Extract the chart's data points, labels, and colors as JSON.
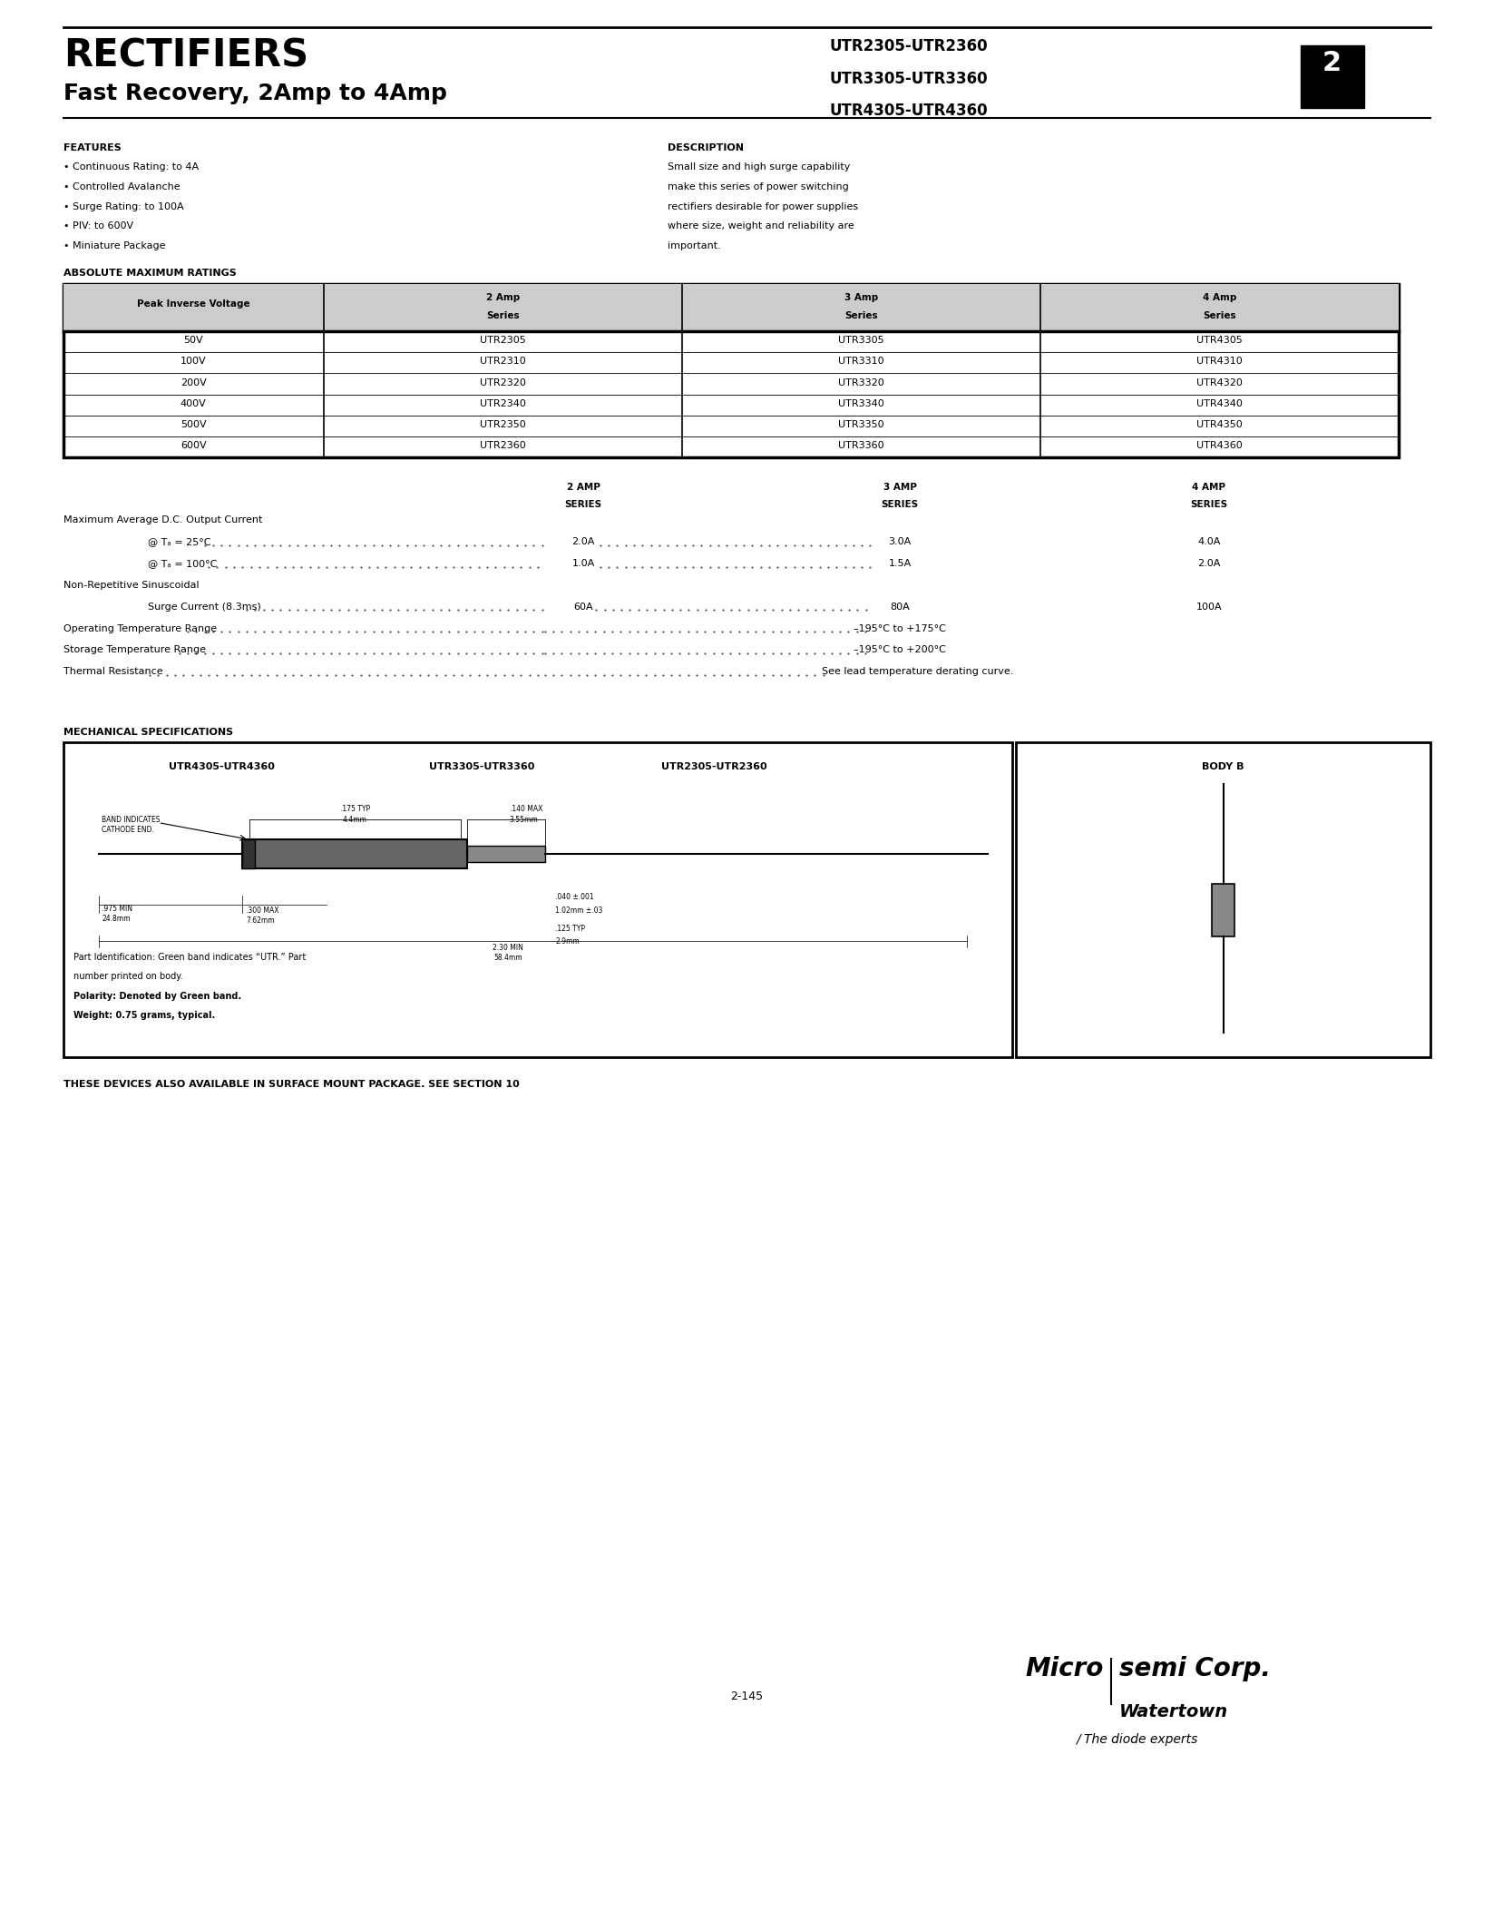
{
  "title": "RECTIFIERS",
  "subtitle": "Fast Recovery, 2Amp to 4Amp",
  "part_numbers": [
    "UTR2305-UTR2360",
    "UTR3305-UTR3360",
    "UTR4305-UTR4360"
  ],
  "section_number": "2",
  "features_title": "FEATURES",
  "features": [
    "Continuous Rating: to 4A",
    "Controlled Avalanche",
    "Surge Rating: to 100A",
    "PIV: to 600V",
    "Miniature Package"
  ],
  "description_title": "DESCRIPTION",
  "description_lines": [
    "Small size and high surge capability",
    "make this series of power switching",
    "rectifiers desirable for power supplies",
    "where size, weight and reliability are",
    "important."
  ],
  "abs_max_title": "ABSOLUTE MAXIMUM RATINGS",
  "table_header": [
    "Peak Inverse Voltage",
    "2 Amp\nSeries",
    "3 Amp\nSeries",
    "4 Amp\nSeries"
  ],
  "table_rows": [
    [
      "50V",
      "UTR2305",
      "UTR3305",
      "UTR4305"
    ],
    [
      "100V",
      "UTR2310",
      "UTR3310",
      "UTR4310"
    ],
    [
      "200V",
      "UTR2320",
      "UTR3320",
      "UTR4320"
    ],
    [
      "400V",
      "UTR2340",
      "UTR3340",
      "UTR4340"
    ],
    [
      "500V",
      "UTR2350",
      "UTR3350",
      "UTR4350"
    ],
    [
      "600V",
      "UTR2360",
      "UTR3360",
      "UTR4360"
    ]
  ],
  "specs_col_headers": [
    "2 AMP\nSERIES",
    "3 AMP\nSERIES",
    "4 AMP\nSERIES"
  ],
  "spec_items": [
    {
      "label": "Maximum Average D.C. Output Current",
      "indent": false,
      "dots": false,
      "c1": "",
      "c2": "",
      "c3": ""
    },
    {
      "label": "@ Tₐ = 25°C",
      "indent": true,
      "dots": true,
      "c1": "2.0A",
      "c2": "3.0A",
      "c3": "4.0A"
    },
    {
      "label": "@ Tₐ = 100°C",
      "indent": true,
      "dots": true,
      "c1": "1.0A",
      "c2": "1.5A",
      "c3": "2.0A"
    },
    {
      "label": "Non-Repetitive Sinuscoidal",
      "indent": false,
      "dots": false,
      "c1": "",
      "c2": "",
      "c3": ""
    },
    {
      "label": "Surge Current (8.3ms)",
      "indent": true,
      "dots": true,
      "c1": "60A",
      "c2": "80A",
      "c3": "100A"
    },
    {
      "label": "Operating Temperature Range",
      "indent": false,
      "dots": true,
      "c1": "",
      "c2": "–195°C to +175°C",
      "c3": ""
    },
    {
      "label": "Storage Temperature Range",
      "indent": false,
      "dots": true,
      "c1": "",
      "c2": "–195°C to +200°C",
      "c3": ""
    },
    {
      "label": "Thermal Resistance",
      "indent": false,
      "dots": true,
      "c1": "",
      "c2": "See lead temperature derating curve.",
      "c3": ""
    }
  ],
  "mech_title": "MECHANICAL SPECIFICATIONS",
  "mech_box_labels": [
    "UTR4305-UTR4360",
    "UTR3305-UTR3360",
    "UTR2305-UTR2360"
  ],
  "body_b_label": "BODY B",
  "part_id_lines": [
    "Part Identification: Green band indicates “UTR.” Part",
    "number printed on body.",
    "Polarity: Denoted by Green band.",
    "Weight: 0.75 grams, typical."
  ],
  "surface_mount_text": "THESE DEVICES ALSO AVAILABLE IN SURFACE MOUNT PACKAGE. SEE SECTION 10",
  "page_num": "2-145",
  "company_name": "Microsemi Corp.",
  "city": "Watertown",
  "tagline": "The diode experts",
  "bg_color": "#ffffff",
  "text_color": "#000000"
}
